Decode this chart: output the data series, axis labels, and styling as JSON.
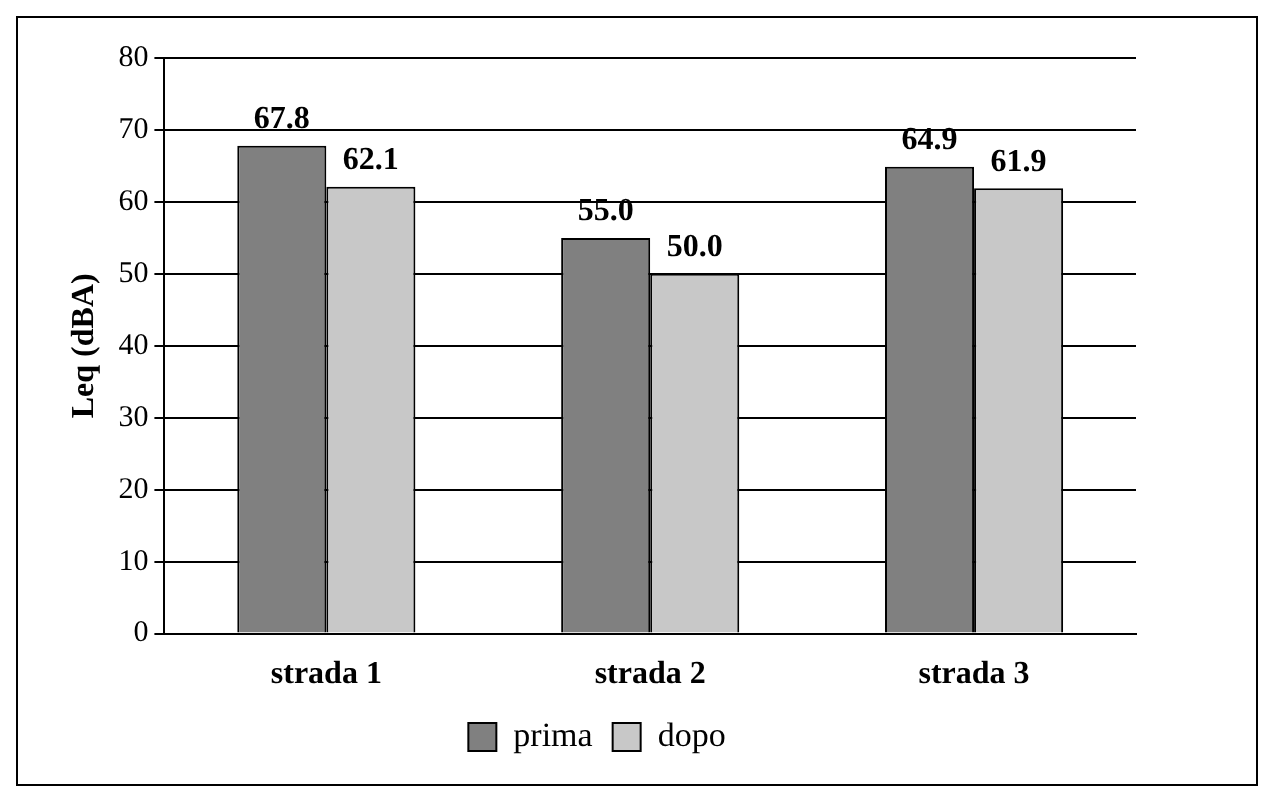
{
  "chart_data": {
    "type": "bar",
    "ylabel": "Leq (dBA)",
    "categories": [
      "strada 1",
      "strada 2",
      "strada 3"
    ],
    "series": [
      {
        "name": "prima",
        "color": "#808080",
        "values": [
          67.8,
          55.0,
          64.9
        ],
        "value_labels": [
          "67.8",
          "55.0",
          "64.9"
        ]
      },
      {
        "name": "dopo",
        "color": "#c8c8c8",
        "values": [
          62.1,
          50.0,
          61.9
        ],
        "value_labels": [
          "62.1",
          "50.0",
          "61.9"
        ]
      }
    ],
    "ylim": [
      0,
      80
    ],
    "yticks": [
      0,
      10,
      20,
      30,
      40,
      50,
      60,
      70,
      80
    ],
    "grid": "y",
    "legend": "bottom"
  }
}
